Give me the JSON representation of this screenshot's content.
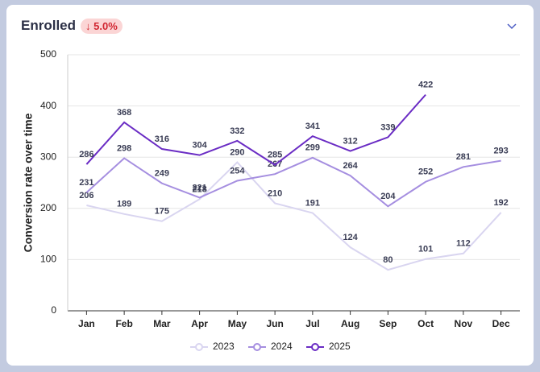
{
  "header": {
    "title": "Enrolled",
    "badge": "↓ 5.0%"
  },
  "chart_data": {
    "type": "line",
    "y_label": "Conversion rate over time",
    "categories": [
      "Jan",
      "Feb",
      "Mar",
      "Apr",
      "May",
      "Jun",
      "Jul",
      "Aug",
      "Sep",
      "Oct",
      "Nov",
      "Dec"
    ],
    "series": [
      {
        "name": "2023",
        "color": "#d9d5f0",
        "values": [
          206,
          189,
          175,
          218,
          290,
          210,
          191,
          124,
          80,
          101,
          112,
          192
        ]
      },
      {
        "name": "2024",
        "color": "#a58ee0",
        "values": [
          231,
          298,
          249,
          221,
          254,
          267,
          299,
          264,
          204,
          252,
          281,
          293
        ]
      },
      {
        "name": "2025",
        "color": "#6a2cc4",
        "values": [
          286,
          368,
          316,
          304,
          332,
          285,
          341,
          312,
          339,
          422,
          null,
          null
        ]
      }
    ],
    "ylim": [
      0,
      500
    ],
    "yticks": [
      0,
      100,
      200,
      300,
      400,
      500
    ],
    "grid": true,
    "legend": "bottom"
  }
}
